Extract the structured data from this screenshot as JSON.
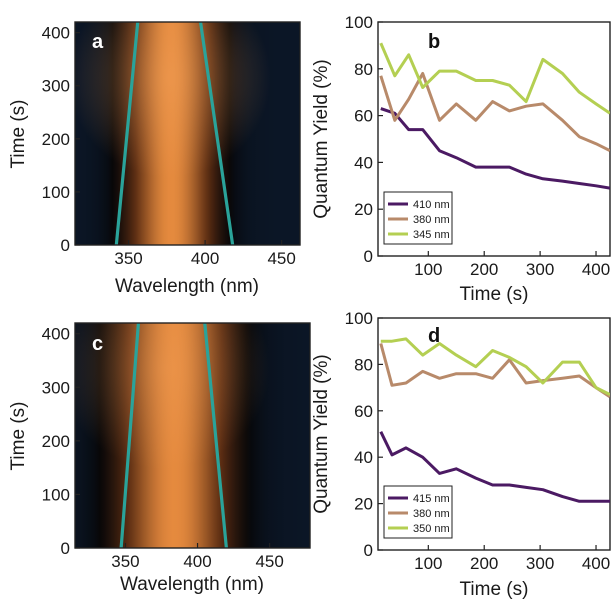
{
  "colors": {
    "heat_dark": "#0b1626",
    "heat_mid": "#5a2c12",
    "heat_hot": "#e58a3e",
    "fit_line": "#2aa39a",
    "series_purple": "#4b1a63",
    "series_tan": "#b88a6a",
    "series_green": "#b4cf52"
  },
  "chart_data": [
    {
      "panel": "a",
      "type": "heatmap",
      "xlabel": "Wavelength (nm)",
      "ylabel": "Time (s)",
      "xlim": [
        315,
        462
      ],
      "ylim": [
        0,
        420
      ],
      "xticks": [
        "350",
        "400",
        "450"
      ],
      "yticks": [
        "0",
        "100",
        "200",
        "300",
        "400"
      ],
      "peak_center_nm": 378,
      "peak_width_nm": 34,
      "fit_lines": [
        {
          "points": [
            [
              342,
              0
            ],
            [
              356,
              420
            ]
          ]
        },
        {
          "points": [
            [
              418,
              0
            ],
            [
              397,
              420
            ]
          ]
        }
      ]
    },
    {
      "panel": "b",
      "type": "line",
      "xlabel": "Time (s)",
      "ylabel": "Quantum Yield (%)",
      "xlim": [
        10,
        425
      ],
      "ylim": [
        0,
        100
      ],
      "xticks": [
        "100",
        "200",
        "300",
        "400"
      ],
      "yticks": [
        "0",
        "20",
        "40",
        "60",
        "80",
        "100"
      ],
      "legend_position": "bottom-left",
      "series": [
        {
          "name": "410 nm",
          "color": "#4b1a63",
          "points": [
            [
              15,
              63
            ],
            [
              40,
              61
            ],
            [
              65,
              54
            ],
            [
              90,
              54
            ],
            [
              120,
              45
            ],
            [
              150,
              42
            ],
            [
              185,
              38
            ],
            [
              215,
              38
            ],
            [
              245,
              38
            ],
            [
              275,
              35
            ],
            [
              305,
              33
            ],
            [
              340,
              32
            ],
            [
              370,
              31
            ],
            [
              400,
              30
            ],
            [
              425,
              29
            ]
          ]
        },
        {
          "name": "380 nm",
          "color": "#b88a6a",
          "points": [
            [
              15,
              77
            ],
            [
              40,
              58
            ],
            [
              65,
              67
            ],
            [
              90,
              78
            ],
            [
              120,
              58
            ],
            [
              150,
              65
            ],
            [
              185,
              58
            ],
            [
              215,
              66
            ],
            [
              245,
              62
            ],
            [
              275,
              64
            ],
            [
              305,
              65
            ],
            [
              340,
              58
            ],
            [
              370,
              51
            ],
            [
              400,
              48
            ],
            [
              425,
              45
            ]
          ]
        },
        {
          "name": "345 nm",
          "color": "#b4cf52",
          "points": [
            [
              15,
              91
            ],
            [
              40,
              77
            ],
            [
              65,
              86
            ],
            [
              90,
              72
            ],
            [
              120,
              79
            ],
            [
              150,
              79
            ],
            [
              185,
              75
            ],
            [
              215,
              75
            ],
            [
              245,
              73
            ],
            [
              275,
              66
            ],
            [
              305,
              84
            ],
            [
              340,
              78
            ],
            [
              370,
              70
            ],
            [
              400,
              65
            ],
            [
              425,
              61
            ]
          ]
        }
      ]
    },
    {
      "panel": "c",
      "type": "heatmap",
      "xlabel": "Wavelength (nm)",
      "ylabel": "Time (s)",
      "xlim": [
        315,
        478
      ],
      "ylim": [
        0,
        420
      ],
      "xticks": [
        "350",
        "400",
        "450"
      ],
      "yticks": [
        "0",
        "100",
        "200",
        "300",
        "400"
      ],
      "peak_center_nm": 384,
      "peak_width_nm": 46,
      "fit_lines": [
        {
          "points": [
            [
              347,
              0
            ],
            [
              359,
              420
            ]
          ]
        },
        {
          "points": [
            [
              420,
              0
            ],
            [
              405,
              420
            ]
          ]
        }
      ]
    },
    {
      "panel": "d",
      "type": "line",
      "xlabel": "Time (s)",
      "ylabel": "Quantum Yield (%)",
      "xlim": [
        10,
        425
      ],
      "ylim": [
        0,
        100
      ],
      "xticks": [
        "100",
        "200",
        "300",
        "400"
      ],
      "yticks": [
        "0",
        "20",
        "40",
        "60",
        "80",
        "100"
      ],
      "legend_position": "bottom-left",
      "series": [
        {
          "name": "415 nm",
          "color": "#4b1a63",
          "points": [
            [
              15,
              51
            ],
            [
              35,
              41
            ],
            [
              60,
              44
            ],
            [
              90,
              40
            ],
            [
              120,
              33
            ],
            [
              150,
              35
            ],
            [
              185,
              31
            ],
            [
              215,
              28
            ],
            [
              245,
              28
            ],
            [
              275,
              27
            ],
            [
              305,
              26
            ],
            [
              340,
              23
            ],
            [
              370,
              21
            ],
            [
              400,
              21
            ],
            [
              425,
              21
            ]
          ]
        },
        {
          "name": "380 nm",
          "color": "#b88a6a",
          "points": [
            [
              15,
              89
            ],
            [
              35,
              71
            ],
            [
              60,
              72
            ],
            [
              90,
              77
            ],
            [
              120,
              74
            ],
            [
              150,
              76
            ],
            [
              185,
              76
            ],
            [
              215,
              74
            ],
            [
              245,
              82
            ],
            [
              275,
              72
            ],
            [
              305,
              73
            ],
            [
              340,
              74
            ],
            [
              370,
              75
            ],
            [
              400,
              70
            ],
            [
              425,
              66
            ]
          ]
        },
        {
          "name": "350 nm",
          "color": "#b4cf52",
          "points": [
            [
              15,
              90
            ],
            [
              35,
              90
            ],
            [
              60,
              91
            ],
            [
              90,
              84
            ],
            [
              120,
              89
            ],
            [
              150,
              84
            ],
            [
              185,
              79
            ],
            [
              215,
              86
            ],
            [
              245,
              83
            ],
            [
              275,
              79
            ],
            [
              305,
              72
            ],
            [
              340,
              81
            ],
            [
              370,
              81
            ],
            [
              400,
              70
            ],
            [
              425,
              67
            ]
          ]
        }
      ]
    }
  ]
}
